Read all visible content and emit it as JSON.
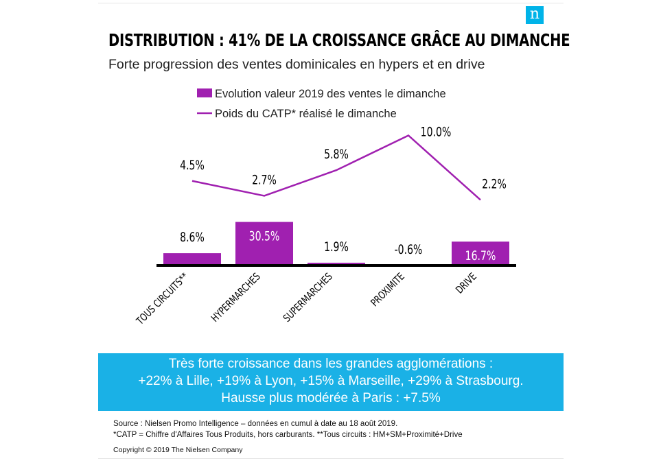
{
  "header": {
    "logo_letter": "n",
    "title": "DISTRIBUTION : 41% DE LA CROISSANCE GRÂCE AU DIMANCHE",
    "subtitle": "Forte progression des ventes dominicales en hypers et en drive"
  },
  "chart_data": {
    "type": "bar+line",
    "categories": [
      "TOUS CIRCUITS**",
      "HYPERMARCHES",
      "SUPERMARCHES",
      "PROXIMITE",
      "DRIVE"
    ],
    "series": [
      {
        "name": "Evolution valeur 2019 des ventes le dimanche",
        "type": "bar",
        "values": [
          8.6,
          30.5,
          1.9,
          -0.6,
          16.7
        ],
        "labels": [
          "8.6%",
          "30.5%",
          "1.9%",
          "-0.6%",
          "16.7%"
        ]
      },
      {
        "name": "Poids du CATP* réalisé le dimanche",
        "type": "line",
        "values": [
          4.5,
          2.7,
          5.8,
          10.0,
          2.2
        ],
        "labels": [
          "4.5%",
          "2.7%",
          "5.8%",
          "10.0%",
          "2.2%"
        ]
      }
    ],
    "legend_position": "top",
    "color": "#a020b0",
    "grid": false
  },
  "banner": {
    "lines": [
      "Très forte croissance dans les grandes agglomérations :",
      "+22% à Lille, +19% à Lyon, +15% à Marseille, +29% à Strasbourg.",
      "Hausse plus modérée à Paris : +7.5%"
    ],
    "color": "#1ab1e6"
  },
  "footer": {
    "source": "Source : Nielsen Promo Intelligence – données en cumul à date au 18 août 2019.",
    "note": "*CATP = Chiffre d'Affaires Tous Produits, hors carburants. **Tous circuits : HM+SM+Proximité+Drive",
    "copyright": "Copyright © 2019 The Nielsen Company"
  }
}
